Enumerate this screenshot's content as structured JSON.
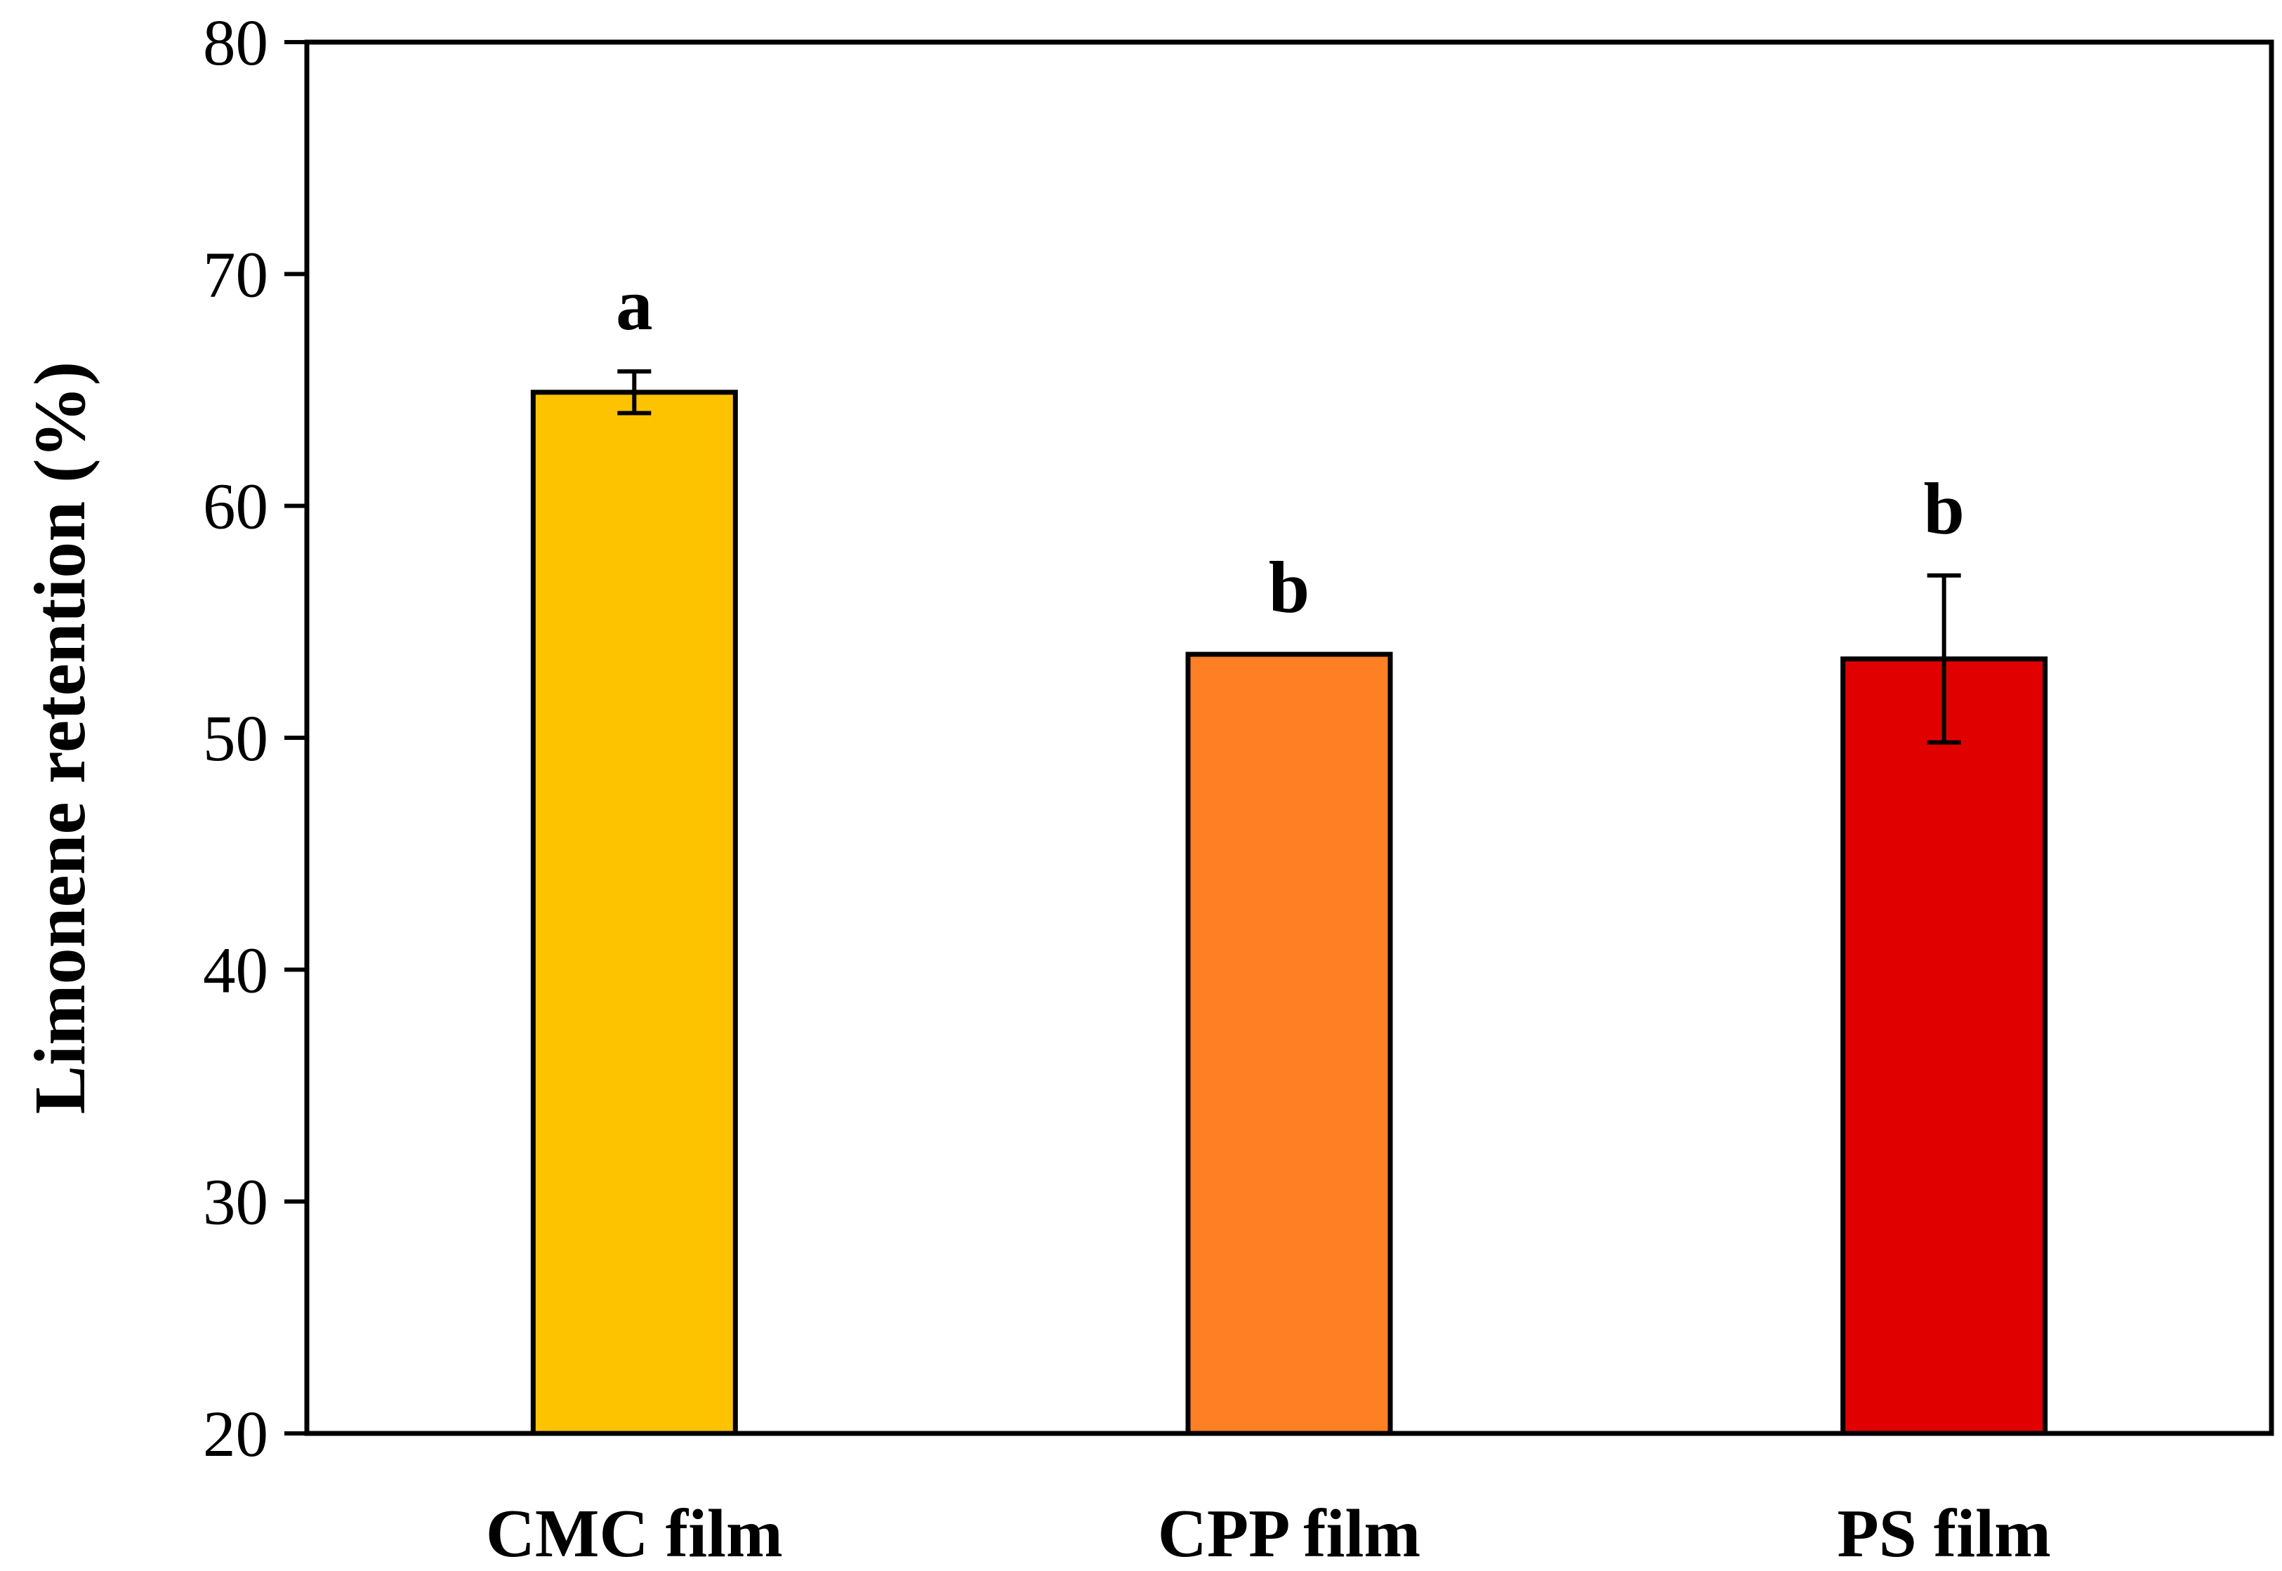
{
  "chart_data": {
    "type": "bar",
    "title": "",
    "xlabel": "",
    "ylabel": "Limonene retention (%)",
    "ylim": [
      20,
      80
    ],
    "yticks": [
      20,
      30,
      40,
      50,
      60,
      70,
      80
    ],
    "grid": false,
    "legend": "none",
    "categories": [
      "CMC film",
      "CPP film",
      "PS film"
    ],
    "values": [
      64.9,
      53.6,
      53.4
    ],
    "errors": [
      0.9,
      0.0,
      3.6
    ],
    "significance_letters": [
      "a",
      "b",
      "b"
    ],
    "colors": [
      "#FDC300",
      "#FF7F24",
      "#E00000"
    ]
  }
}
